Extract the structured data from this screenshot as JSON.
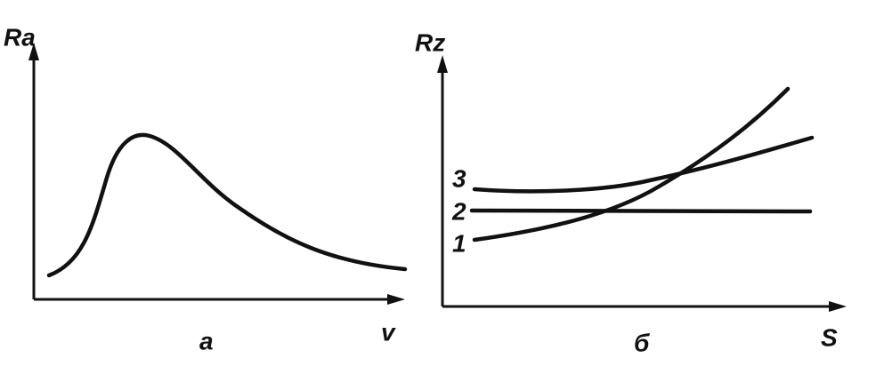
{
  "panels": [
    {
      "y_label": "Ra",
      "x_label": "v",
      "caption": "a"
    },
    {
      "y_label": "Rz",
      "x_label": "S",
      "caption": "б",
      "curve_labels": [
        "3",
        "2",
        "1"
      ]
    }
  ]
}
